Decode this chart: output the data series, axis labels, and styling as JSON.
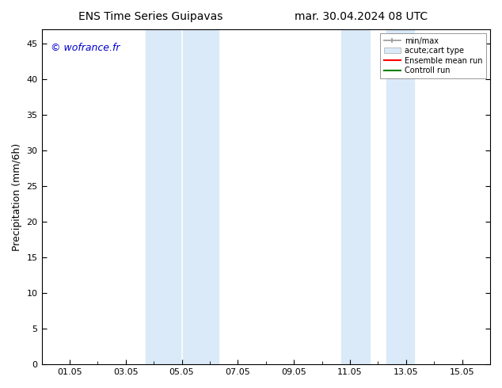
{
  "title_left": "ENS Time Series Guipavas",
  "title_right": "mar. 30.04.2024 08 UTC",
  "ylabel": "Precipitation (mm/6h)",
  "watermark": "© wofrance.fr",
  "watermark_color": "#0000cc",
  "xtick_labels": [
    "01.05",
    "03.05",
    "05.05",
    "07.05",
    "09.05",
    "11.05",
    "13.05",
    "15.05"
  ],
  "xtick_positions": [
    1,
    3,
    5,
    7,
    9,
    11,
    13,
    15
  ],
  "xlim": [
    0,
    16
  ],
  "ylim": [
    0,
    47
  ],
  "yticks": [
    0,
    5,
    10,
    15,
    20,
    25,
    30,
    35,
    40,
    45
  ],
  "background_color": "#ffffff",
  "plot_bg_color": "#ffffff",
  "shaded_regions": [
    {
      "xstart": 4.0,
      "xend": 5.0,
      "color": "#daeaf8"
    },
    {
      "xstart": 5.5,
      "xend": 6.5,
      "color": "#daeaf8"
    },
    {
      "xstart": 11.0,
      "xend": 12.0,
      "color": "#daeaf8"
    },
    {
      "xstart": 12.5,
      "xend": 13.0,
      "color": "#daeaf8"
    }
  ],
  "legend_items": [
    {
      "label": "min/max",
      "color": "#aaaaaa",
      "lw": 1.5
    },
    {
      "label": "acute;cart type",
      "color": "#daeaf8"
    },
    {
      "label": "Ensemble mean run",
      "color": "#ff0000",
      "lw": 1.5
    },
    {
      "label": "Controll run",
      "color": "#008000",
      "lw": 1.5
    }
  ],
  "title_fontsize": 10,
  "tick_fontsize": 8,
  "ylabel_fontsize": 9,
  "watermark_fontsize": 9
}
